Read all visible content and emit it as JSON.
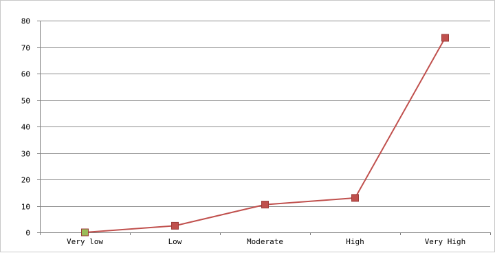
{
  "chart_data": {
    "type": "line",
    "title": "",
    "xlabel": "",
    "ylabel": "",
    "categories": [
      "Very low",
      "Low",
      "Moderate",
      "High",
      "Very High"
    ],
    "series": [
      {
        "values": [
          0,
          2.5,
          10.5,
          13,
          73.5
        ],
        "color": "#c0504d",
        "marker": "square"
      }
    ],
    "first_marker_color": "#9bbb59",
    "ylim": [
      0,
      80
    ],
    "yticks": [
      0,
      10,
      20,
      30,
      40,
      50,
      60,
      70,
      80
    ],
    "grid": "horizontal",
    "legend": "none"
  }
}
